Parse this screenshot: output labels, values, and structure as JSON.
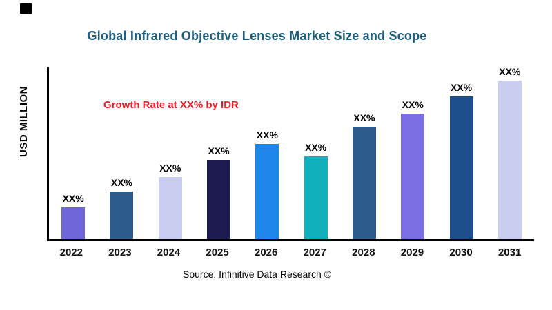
{
  "title": "Global Infrared Objective Lenses  Market Size and Scope",
  "ylabel": "USD MILLION",
  "annotation": "Growth Rate at XX% by IDR",
  "source": "Source: Infinitive Data Research ©",
  "colors": {
    "title": "#1C5D7C",
    "annotation": "#EE1C25",
    "axis": "#000000"
  },
  "chart_data": {
    "type": "bar",
    "title": "Global Infrared Objective Lenses  Market Size and Scope",
    "xlabel": "",
    "ylabel": "USD MILLION",
    "categories": [
      "2022",
      "2023",
      "2024",
      "2025",
      "2026",
      "2027",
      "2028",
      "2029",
      "2030",
      "2031"
    ],
    "values": [
      20,
      30,
      39,
      50,
      60,
      52,
      71,
      79,
      90,
      100
    ],
    "data_labels": [
      "XX%",
      "XX%",
      "XX%",
      "XX%",
      "XX%",
      "XX%",
      "XX%",
      "XX%",
      "XX%",
      "XX%"
    ],
    "bar_colors": [
      "#6F66DA",
      "#2E5C8A",
      "#C9CEF0",
      "#1D1B4F",
      "#1E86E8",
      "#0FAFBC",
      "#2E5C8A",
      "#7C6FE4",
      "#1D4F8C",
      "#C9CEF0"
    ],
    "ylim": [
      0,
      110
    ],
    "grid": false,
    "legend": "none",
    "annotations": [
      "Growth Rate at XX% by IDR"
    ]
  }
}
